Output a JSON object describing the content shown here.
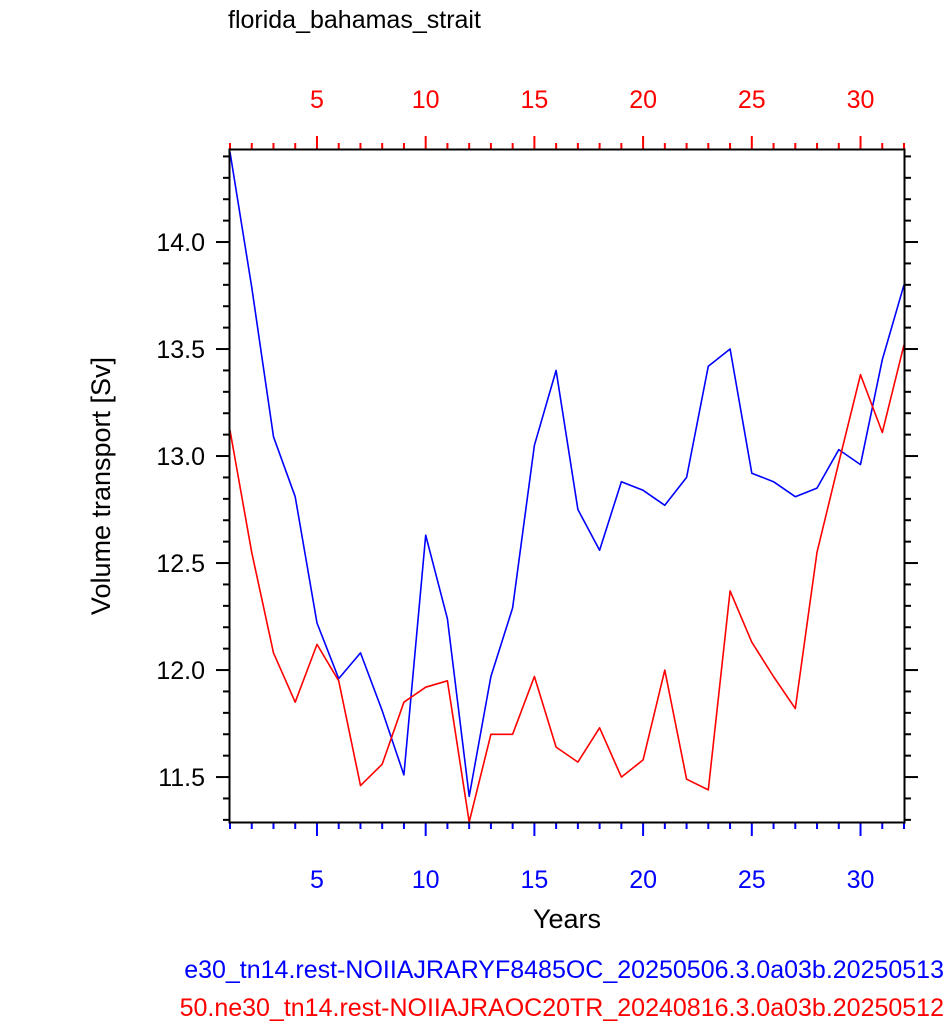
{
  "chart_data": {
    "type": "line",
    "title": "florida_bahamas_strait",
    "xlabel": "Years",
    "ylabel": "Volume transport [Sv]",
    "xlim": [
      1,
      32
    ],
    "ylim": [
      11.29,
      14.43
    ],
    "x_ticks": [
      5,
      10,
      15,
      20,
      25,
      30
    ],
    "y_ticks": [
      "11.5",
      "12.0",
      "12.5",
      "13.0",
      "13.5",
      "14.0"
    ],
    "grid": false,
    "legend": "bottom, as run captions",
    "x": [
      1,
      2,
      3,
      4,
      5,
      6,
      7,
      8,
      9,
      10,
      11,
      12,
      13,
      14,
      15,
      16,
      17,
      18,
      19,
      20,
      21,
      22,
      23,
      24,
      25,
      26,
      27,
      28,
      29,
      30,
      31,
      32
    ],
    "series": [
      {
        "name": "e30_tn14.rest-NOIIAJRARYF8485OC_20250506.3.0a03b.20250513",
        "color": "#0000ff",
        "axis": "bottom",
        "values": [
          14.42,
          13.79,
          13.09,
          12.81,
          12.22,
          11.96,
          12.08,
          11.81,
          11.51,
          12.63,
          12.24,
          11.41,
          11.97,
          12.29,
          13.05,
          13.4,
          12.75,
          12.56,
          12.88,
          12.84,
          12.77,
          12.9,
          13.42,
          13.5,
          12.92,
          12.88,
          12.81,
          12.85,
          13.03,
          12.96,
          13.45,
          13.8
        ]
      },
      {
        "name": "50.ne30_tn14.rest-NOIIAJRAOC20TR_20240816.3.0a03b.20250512",
        "color": "#ff0000",
        "axis": "top",
        "values": [
          13.12,
          12.55,
          12.08,
          11.85,
          12.12,
          11.95,
          11.46,
          11.56,
          11.85,
          11.92,
          11.95,
          11.29,
          11.7,
          11.7,
          11.97,
          11.64,
          11.57,
          11.73,
          11.5,
          11.58,
          12.0,
          11.49,
          11.44,
          12.37,
          12.13,
          11.97,
          11.82,
          12.55,
          12.97,
          13.38,
          13.11,
          13.52
        ]
      }
    ]
  }
}
